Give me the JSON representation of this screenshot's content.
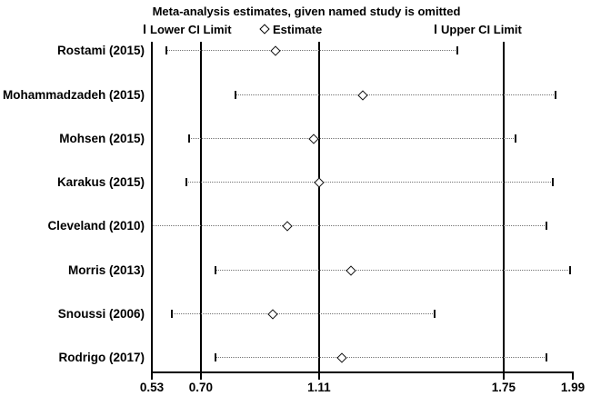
{
  "title": "Meta-analysis estimates, given named study is omitted",
  "legend": {
    "lower_label": "Lower CI Limit",
    "estimate_label": "Estimate",
    "upper_label": "Upper CI Limit"
  },
  "colors": {
    "background": "#ffffff",
    "text": "#000000",
    "axis": "#000000",
    "dotted_line": "#737373",
    "marker": "#111111"
  },
  "chart_data": {
    "type": "forest",
    "title": "Meta-analysis estimates, given named study is omitted",
    "legend": [
      "Lower CI Limit",
      "Estimate",
      "Upper CI Limit"
    ],
    "x_axis": {
      "min": 0.53,
      "max": 1.99,
      "ticks": [
        {
          "value": 0.53,
          "label": "0.53"
        },
        {
          "value": 0.7,
          "label": "0.70"
        },
        {
          "value": 1.11,
          "label": "1.11"
        },
        {
          "value": 1.75,
          "label": "1.75"
        },
        {
          "value": 1.99,
          "label": "1.99"
        }
      ],
      "reference_lines": [
        0.7,
        1.11,
        1.75
      ]
    },
    "studies": [
      {
        "label": "Rostami (2015)",
        "lower": 0.58,
        "estimate": 0.96,
        "upper": 1.59
      },
      {
        "label": "Mohammadzadeh (2015)",
        "lower": 0.82,
        "estimate": 1.26,
        "upper": 1.93
      },
      {
        "label": "Mohsen (2015)",
        "lower": 0.66,
        "estimate": 1.09,
        "upper": 1.79
      },
      {
        "label": "Karakus (2015)",
        "lower": 0.65,
        "estimate": 1.11,
        "upper": 1.92
      },
      {
        "label": "Cleveland (2010)",
        "lower": 0.53,
        "estimate": 1.0,
        "upper": 1.9
      },
      {
        "label": "Morris (2013)",
        "lower": 0.75,
        "estimate": 1.22,
        "upper": 1.98
      },
      {
        "label": "Snoussi (2006)",
        "lower": 0.6,
        "estimate": 0.95,
        "upper": 1.51
      },
      {
        "label": "Rodrigo (2017)",
        "lower": 0.75,
        "estimate": 1.19,
        "upper": 1.9
      }
    ]
  }
}
